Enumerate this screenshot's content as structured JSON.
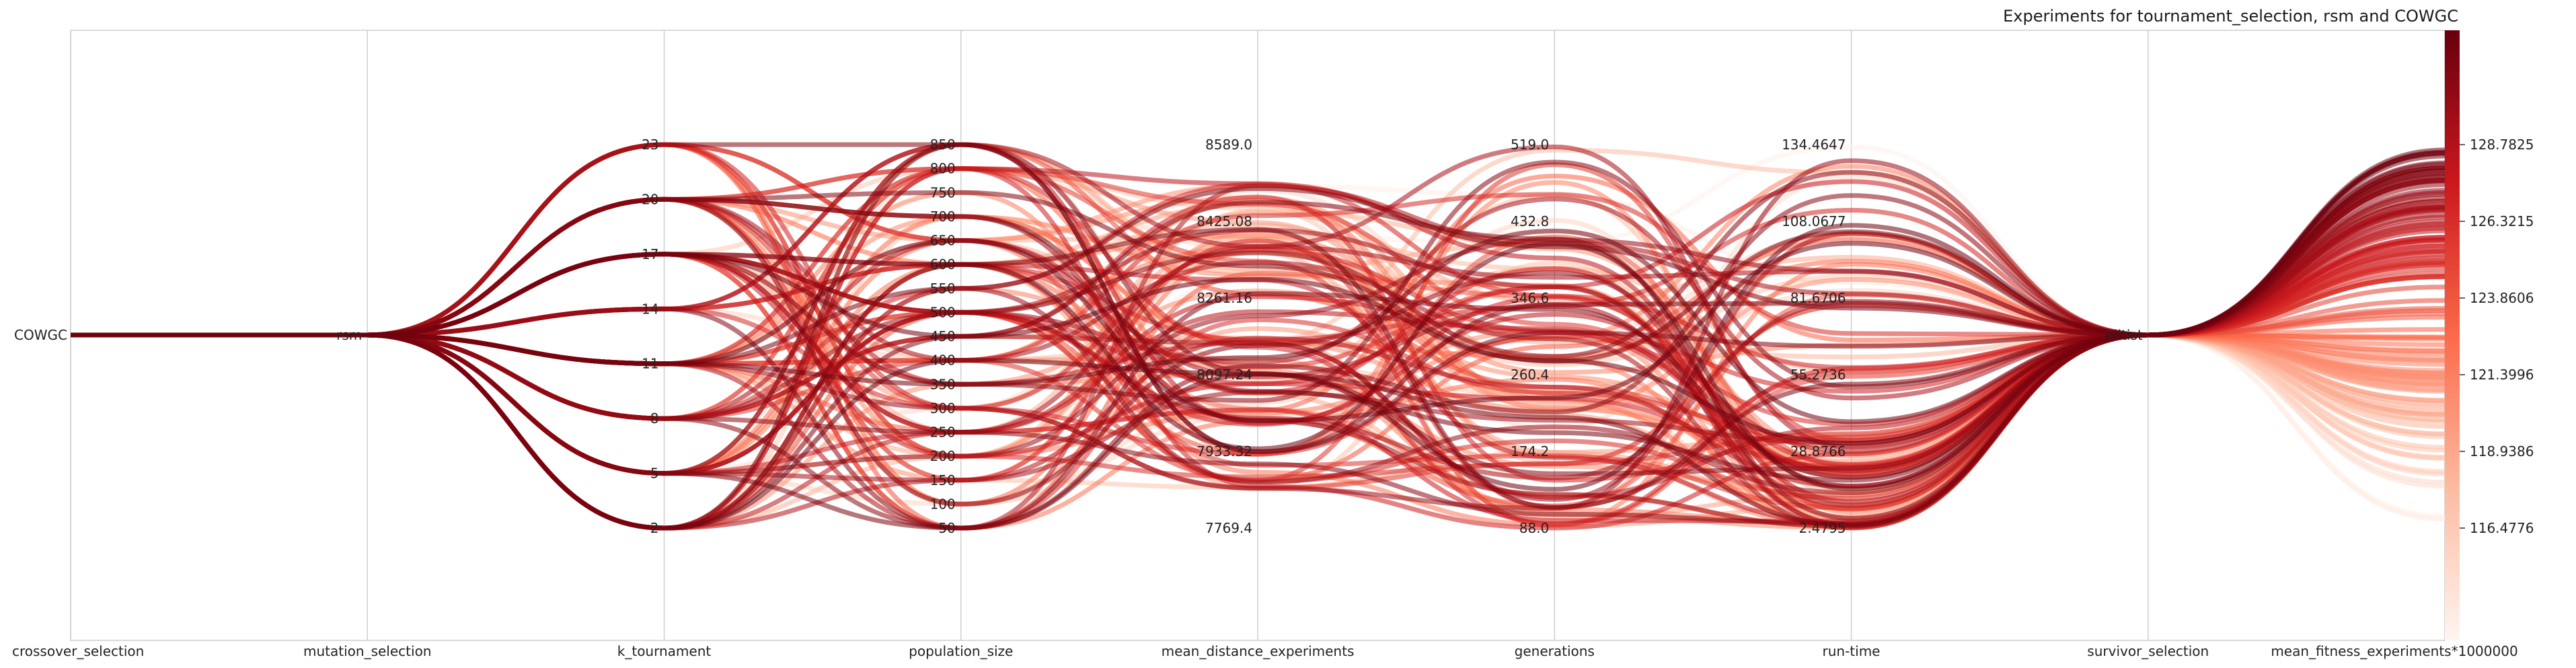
{
  "chart_data": {
    "type": "parallel_coordinates",
    "title": "Experiments for tournament_selection, rsm and COWGC",
    "colorscale": [
      "#fff5f0",
      "#fcbba1",
      "#fb6a4a",
      "#cb181d",
      "#67000d"
    ],
    "grid": true,
    "axes": [
      {
        "name": "crossover_selection",
        "type": "categorical",
        "ticks": [
          "COWGC"
        ]
      },
      {
        "name": "mutation_selection",
        "type": "categorical",
        "ticks": [
          "rsm"
        ]
      },
      {
        "name": "k_tournament",
        "type": "numeric",
        "ticks": [
          "2",
          "5",
          "8",
          "11",
          "14",
          "17",
          "20",
          "23"
        ],
        "range": [
          2,
          23
        ]
      },
      {
        "name": "population_size",
        "type": "numeric",
        "ticks": [
          "50",
          "100",
          "150",
          "200",
          "250",
          "300",
          "350",
          "400",
          "450",
          "500",
          "550",
          "600",
          "650",
          "700",
          "750",
          "800",
          "850"
        ],
        "range": [
          50,
          850
        ]
      },
      {
        "name": "mean_distance_experiments",
        "type": "numeric",
        "ticks": [
          "7769.4",
          "7933.32",
          "8097.24",
          "8261.16",
          "8425.08",
          "8589.0"
        ],
        "range": [
          7769.4,
          8589.0
        ]
      },
      {
        "name": "generations",
        "type": "numeric",
        "ticks": [
          "88.0",
          "174.2",
          "260.4",
          "346.6",
          "432.8",
          "519.0"
        ],
        "range": [
          88.0,
          519.0
        ]
      },
      {
        "name": "run-time",
        "type": "numeric",
        "ticks": [
          "2.4795",
          "28.8766",
          "55.2736",
          "81.6706",
          "108.0677",
          "134.4647"
        ],
        "range": [
          2.4795,
          134.4647
        ]
      },
      {
        "name": "survivor_selection",
        "type": "categorical",
        "ticks": [
          "elitist"
        ]
      },
      {
        "name": "mean_fitness_experiments*1000000",
        "type": "numeric",
        "ticks": [
          "116.4776",
          "118.9386",
          "121.3996",
          "123.8606",
          "126.3215",
          "128.7825"
        ],
        "range": [
          116.4776,
          128.7825
        ]
      }
    ],
    "line_count": 120
  }
}
